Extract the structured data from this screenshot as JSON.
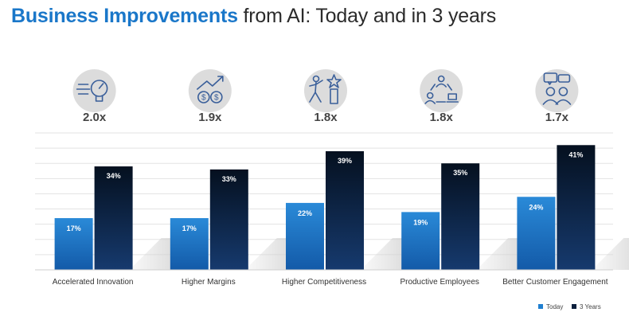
{
  "title": {
    "accent": "Business Improvements",
    "rest": " from AI: Today and in 3 years"
  },
  "colors": {
    "today": "#1f7fd0",
    "three_years": "#0b1f3d",
    "grid": "#e3e3e3",
    "icon_bg": "#dcdcdc",
    "icon_line": "#3a5f9a"
  },
  "chart_data": {
    "type": "bar",
    "title": "Business Improvements from AI: Today and in 3 years",
    "categories": [
      "Accelerated Innovation",
      "Higher Margins",
      "Higher Competitiveness",
      "Productive Employees",
      "Better Customer Engagement"
    ],
    "series": [
      {
        "name": "Today",
        "values": [
          17,
          17,
          22,
          19,
          24
        ]
      },
      {
        "name": "3 Years",
        "values": [
          34,
          33,
          39,
          35,
          41
        ]
      }
    ],
    "value_labels": {
      "Today": [
        "17%",
        "17%",
        "22%",
        "19%",
        "24%"
      ],
      "3 Years": [
        "34%",
        "33%",
        "39%",
        "35%",
        "41%"
      ]
    },
    "multipliers": [
      "2.0x",
      "1.9x",
      "1.8x",
      "1.8x",
      "1.7x"
    ],
    "icons": [
      "lightbulb-icon",
      "dollar-growth-icon",
      "trophy-runner-icon",
      "team-cycle-icon",
      "customer-chat-icon"
    ],
    "ylim": [
      0,
      45
    ],
    "grid": true,
    "legend_position": "bottom-right",
    "xlabel": "",
    "ylabel": ""
  }
}
